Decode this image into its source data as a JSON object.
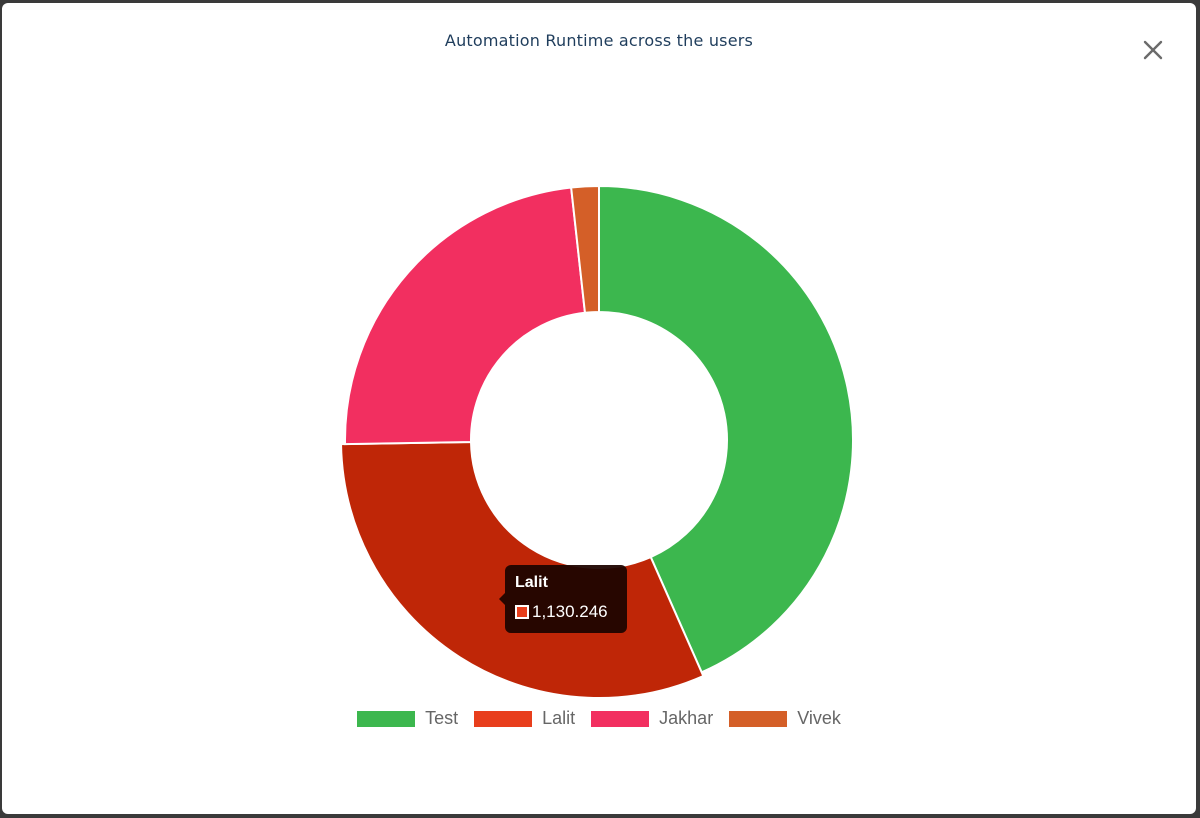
{
  "modal": {
    "title": "Automation Runtime across the users",
    "close_icon": "close-icon"
  },
  "tooltip": {
    "title": "Lalit",
    "value_label": "1,130.246",
    "swatch_color": "#e83e1c"
  },
  "chart_data": {
    "type": "pie",
    "variant": "doughnut",
    "title": "Automation Runtime across the users",
    "legend_position": "bottom",
    "categories": [
      "Test",
      "Lalit",
      "Jakhar",
      "Vivek"
    ],
    "values": [
      1563,
      1130.246,
      847,
      63
    ],
    "slice_colors": [
      "#3cb74e",
      "#bf2607",
      "#f22f60",
      "#d45f28"
    ],
    "legend_colors": [
      "#3cb74e",
      "#e83e1c",
      "#f22f60",
      "#d45f28"
    ],
    "start_angle_deg": 0,
    "direction": "clockwise",
    "hovered_slice": "Lalit"
  }
}
